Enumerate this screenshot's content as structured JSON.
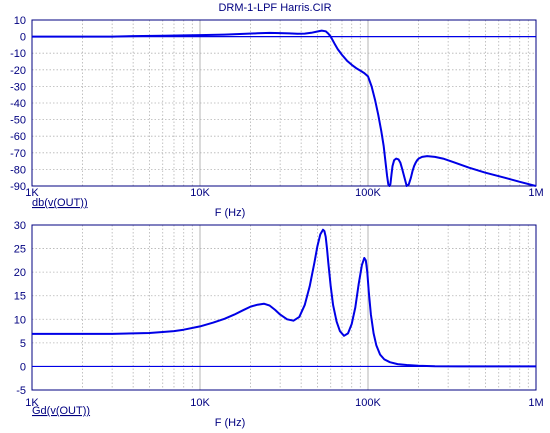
{
  "colors": {
    "trace": "#0000e6",
    "frame": "#000080",
    "grid": "#b4b4b4",
    "text": "#000080",
    "background": "#ffffff"
  },
  "chart_data": [
    {
      "type": "line",
      "title": "DRM-1-LPF Harris.CIR",
      "xlabel": "F (Hz)",
      "series_label": "db(v(OUT))",
      "xscale": "log",
      "xlim": [
        1000,
        1000000
      ],
      "ylim": [
        -90,
        10
      ],
      "grid": true,
      "xticks": [
        {
          "value": 1000,
          "label": "1K"
        },
        {
          "value": 10000,
          "label": "10K"
        },
        {
          "value": 100000,
          "label": "100K"
        },
        {
          "value": 1000000,
          "label": "1M"
        }
      ],
      "yticks": [
        {
          "value": 10,
          "label": "10"
        },
        {
          "value": 0,
          "label": "0"
        },
        {
          "value": -10,
          "label": "-10"
        },
        {
          "value": -20,
          "label": "-20"
        },
        {
          "value": -30,
          "label": "-30"
        },
        {
          "value": -40,
          "label": "-40"
        },
        {
          "value": -50,
          "label": "-50"
        },
        {
          "value": -60,
          "label": "-60"
        },
        {
          "value": -70,
          "label": "-70"
        },
        {
          "value": -80,
          "label": "-80"
        },
        {
          "value": -90,
          "label": "-90"
        }
      ],
      "series": [
        {
          "x": [
            1000,
            2000,
            3000,
            4000,
            6000,
            8000,
            10000,
            14000,
            18000,
            22000,
            26000,
            30000,
            34000,
            38000,
            42000,
            46000,
            50000,
            53000,
            56000,
            58000,
            60000,
            63000,
            66000,
            70000,
            75000,
            80000,
            85000,
            90000,
            95000,
            100000,
            105000,
            110000,
            115000,
            120000,
            124000,
            127000,
            130000,
            132000,
            134000,
            136000,
            138000,
            140000,
            143000,
            147000,
            152000,
            156000,
            160000,
            165000,
            170000,
            175000,
            180000,
            184000,
            188000,
            192000,
            196000,
            200000,
            210000,
            225000,
            250000,
            280000,
            320000,
            400000,
            500000,
            650000,
            800000,
            1000000
          ],
          "y": [
            0,
            0,
            0,
            0.3,
            0.5,
            0.7,
            0.9,
            1.2,
            1.6,
            2.0,
            2.2,
            2.1,
            1.9,
            1.7,
            1.8,
            2.3,
            3.1,
            3.6,
            3.2,
            1.8,
            0,
            -4,
            -7.5,
            -11,
            -14.5,
            -17,
            -19,
            -20.5,
            -22,
            -24,
            -30,
            -38,
            -47,
            -57,
            -66,
            -75,
            -84,
            -89,
            -90,
            -89,
            -83,
            -78,
            -74.5,
            -73.5,
            -74,
            -76,
            -80,
            -85,
            -90,
            -89,
            -85,
            -81,
            -78,
            -76,
            -74.5,
            -73.5,
            -72.5,
            -72,
            -72.5,
            -73.5,
            -75.5,
            -79,
            -82,
            -85,
            -87.5,
            -90
          ]
        }
      ]
    },
    {
      "type": "line",
      "xlabel": "F (Hz)",
      "series_label": "Gd(v(OUT))",
      "xscale": "log",
      "xlim": [
        1000,
        1000000
      ],
      "ylim": [
        -5,
        30
      ],
      "grid": true,
      "xticks": [
        {
          "value": 1000,
          "label": "1K"
        },
        {
          "value": 10000,
          "label": "10K"
        },
        {
          "value": 100000,
          "label": "100K"
        },
        {
          "value": 1000000,
          "label": "1M"
        }
      ],
      "yticks": [
        {
          "value": 30,
          "label": "30"
        },
        {
          "value": 25,
          "label": "25"
        },
        {
          "value": 20,
          "label": "20"
        },
        {
          "value": 15,
          "label": "15"
        },
        {
          "value": 10,
          "label": "10"
        },
        {
          "value": 5,
          "label": "5"
        },
        {
          "value": 0,
          "label": "0"
        },
        {
          "value": -5,
          "label": "-5"
        }
      ],
      "series": [
        {
          "x": [
            1000,
            2000,
            3000,
            4000,
            5000,
            6000,
            7000,
            8000,
            10000,
            12000,
            14000,
            16000,
            18000,
            20000,
            22000,
            24000,
            26000,
            28000,
            30000,
            33000,
            36000,
            39000,
            42000,
            45000,
            48000,
            50000,
            52000,
            54000,
            55000,
            56000,
            57000,
            58000,
            60000,
            62000,
            65000,
            68000,
            72000,
            76000,
            80000,
            84000,
            88000,
            92000,
            95000,
            97000,
            99000,
            101000,
            104000,
            108000,
            112000,
            118000,
            125000,
            135000,
            150000,
            170000,
            200000,
            250000,
            350000,
            500000,
            1000000
          ],
          "y": [
            6.9,
            6.9,
            6.9,
            7.0,
            7.1,
            7.3,
            7.5,
            7.8,
            8.5,
            9.3,
            10.1,
            11.0,
            11.9,
            12.7,
            13.1,
            13.3,
            12.9,
            12.0,
            11.0,
            10.0,
            9.7,
            10.5,
            13.0,
            17.0,
            22.0,
            25.5,
            28.0,
            29.0,
            28.7,
            27.5,
            25.0,
            22.0,
            17.0,
            13.0,
            9.5,
            7.5,
            6.5,
            7.0,
            9.0,
            12.5,
            17.5,
            21.5,
            23.0,
            22.5,
            20.0,
            16.0,
            11.0,
            7.0,
            4.5,
            2.5,
            1.5,
            0.9,
            0.5,
            0.3,
            0.15,
            0.05,
            0,
            0,
            0
          ]
        }
      ]
    }
  ]
}
